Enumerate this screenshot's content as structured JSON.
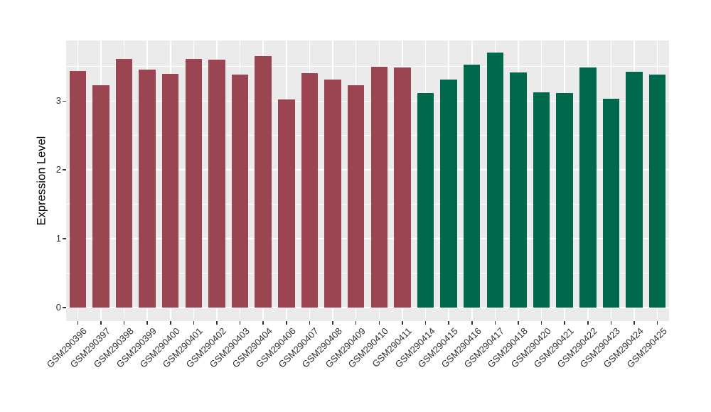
{
  "chart_data": {
    "type": "bar",
    "title": "",
    "xlabel": "",
    "ylabel": "Expression Level",
    "categories": [
      "GSM290396",
      "GSM290397",
      "GSM290398",
      "GSM290399",
      "GSM290400",
      "GSM290401",
      "GSM290402",
      "GSM290403",
      "GSM290404",
      "GSM290406",
      "GSM290407",
      "GSM290408",
      "GSM290409",
      "GSM290410",
      "GSM290411",
      "GSM290414",
      "GSM290415",
      "GSM290416",
      "GSM290417",
      "GSM290418",
      "GSM290420",
      "GSM290421",
      "GSM290422",
      "GSM290423",
      "GSM290424",
      "GSM290425"
    ],
    "values": [
      3.44,
      3.23,
      3.61,
      3.46,
      3.39,
      3.61,
      3.6,
      3.38,
      3.65,
      3.02,
      3.41,
      3.31,
      3.23,
      3.5,
      3.49,
      3.12,
      3.31,
      3.53,
      3.7,
      3.42,
      3.13,
      3.12,
      3.49,
      3.03,
      3.43,
      3.38
    ],
    "groups": [
      "maroon",
      "maroon",
      "maroon",
      "maroon",
      "maroon",
      "maroon",
      "maroon",
      "maroon",
      "maroon",
      "maroon",
      "maroon",
      "maroon",
      "maroon",
      "maroon",
      "maroon",
      "green",
      "green",
      "green",
      "green",
      "green",
      "green",
      "green",
      "green",
      "green",
      "green",
      "green"
    ],
    "group_colors": {
      "maroon": "#9B4452",
      "green": "#00694B"
    },
    "yticks": [
      0,
      1,
      2,
      3
    ],
    "ytick_labels": [
      "0",
      "1",
      "2",
      "3"
    ],
    "minor_ticks": [
      0.5,
      1.5,
      2.5,
      3.5
    ],
    "ylim": [
      -0.195,
      3.88
    ],
    "grid": true,
    "legend": "none",
    "panel_background": "#EBEBEB",
    "gridline_color": "#FFFFFF",
    "axis_text_color": "#303030",
    "axis_title_color": "#000000"
  }
}
